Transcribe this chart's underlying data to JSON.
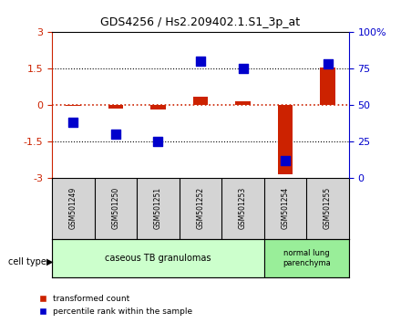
{
  "title": "GDS4256 / Hs2.209402.1.S1_3p_at",
  "samples": [
    "GSM501249",
    "GSM501250",
    "GSM501251",
    "GSM501252",
    "GSM501253",
    "GSM501254",
    "GSM501255"
  ],
  "transformed_count": [
    -0.05,
    -0.15,
    -0.2,
    0.35,
    0.15,
    -2.85,
    1.55
  ],
  "percentile_rank": [
    38,
    30,
    25,
    80,
    75,
    12,
    78
  ],
  "ylim_left": [
    -3,
    3
  ],
  "ylim_right": [
    0,
    100
  ],
  "yticks_left": [
    -3,
    -1.5,
    0,
    1.5,
    3
  ],
  "yticks_right": [
    0,
    25,
    50,
    75,
    100
  ],
  "red_color": "#cc2200",
  "blue_color": "#0000cc",
  "group1_label": "caseous TB granulomas",
  "group1_indices": [
    0,
    1,
    2,
    3,
    4
  ],
  "group2_label": "normal lung\nparenchyma",
  "group2_indices": [
    5,
    6
  ],
  "group1_color": "#ccffcc",
  "group2_color": "#99ee99",
  "sample_box_color": "#d4d4d4",
  "cell_type_label": "cell type",
  "legend_red": "transformed count",
  "legend_blue": "percentile rank within the sample",
  "bar_width": 0.35,
  "marker_size": 55
}
